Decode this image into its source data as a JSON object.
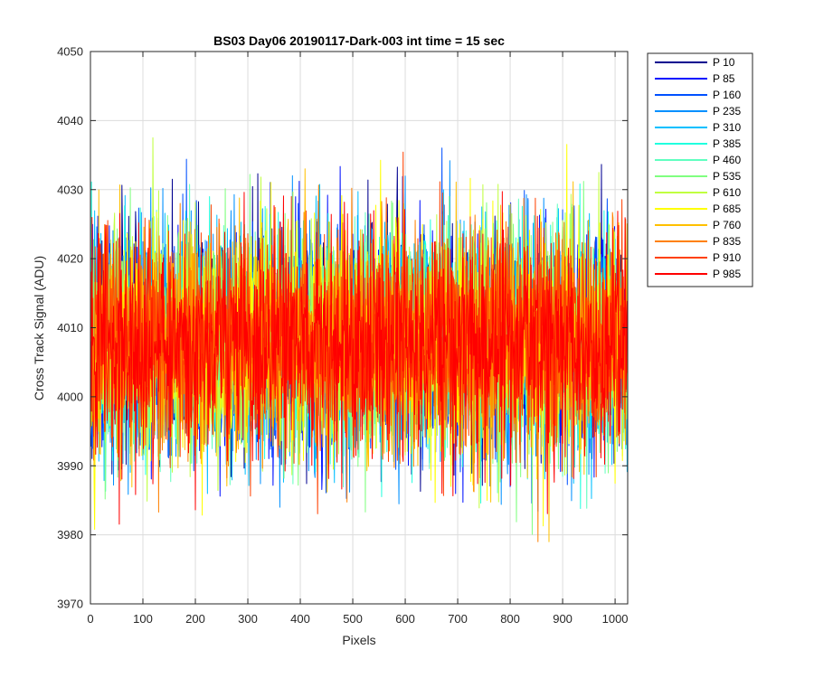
{
  "chart_data": {
    "type": "line",
    "title": "BS03 Day06 20190117-Dark-003 int time = 15 sec",
    "xlabel": "Pixels",
    "ylabel": "Cross Track Signal (ADU)",
    "xlim": [
      0,
      1024
    ],
    "ylim": [
      3970,
      4050
    ],
    "xticks": [
      "0",
      "100",
      "200",
      "300",
      "400",
      "500",
      "600",
      "700",
      "800",
      "900",
      "1000"
    ],
    "yticks": [
      "3970",
      "3980",
      "3990",
      "4000",
      "4010",
      "4020",
      "4030",
      "4040",
      "4050"
    ],
    "grid": true,
    "legend_position": "outside-top-right",
    "noise_model": {
      "mean": 4008,
      "stdev": 8,
      "min": 3979,
      "max": 4044,
      "points_per_series": 1024
    },
    "series": [
      {
        "name": "P 10",
        "color": "#00008F",
        "mean": 4008
      },
      {
        "name": "P 85",
        "color": "#0010FF",
        "mean": 4008
      },
      {
        "name": "P 160",
        "color": "#0050FF",
        "mean": 4008
      },
      {
        "name": "P 235",
        "color": "#0090FF",
        "mean": 4008
      },
      {
        "name": "P 310",
        "color": "#00BFFF",
        "mean": 4008
      },
      {
        "name": "P 385",
        "color": "#20FFDF",
        "mean": 4008
      },
      {
        "name": "P 460",
        "color": "#60FFC0",
        "mean": 4008
      },
      {
        "name": "P 535",
        "color": "#80FF80",
        "mean": 4008
      },
      {
        "name": "P 610",
        "color": "#C0FF40",
        "mean": 4008
      },
      {
        "name": "P 685",
        "color": "#FFFF00",
        "mean": 4008
      },
      {
        "name": "P 760",
        "color": "#FFC000",
        "mean": 4008
      },
      {
        "name": "P 835",
        "color": "#FF8000",
        "mean": 4008
      },
      {
        "name": "P 910",
        "color": "#FF4000",
        "mean": 4008
      },
      {
        "name": "P 985",
        "color": "#FF0000",
        "mean": 4008
      }
    ]
  }
}
